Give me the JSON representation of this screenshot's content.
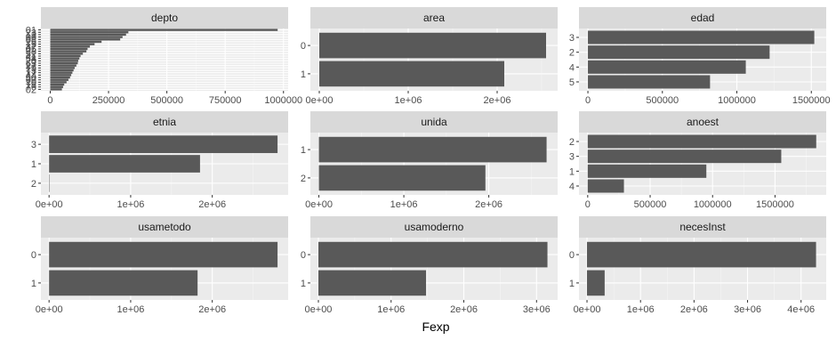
{
  "colors": {
    "panel_bg": "#ebebeb",
    "strip_bg": "#d9d9d9",
    "grid_major": "#ffffff",
    "bar": "#595959",
    "text": "#4d4d4d"
  },
  "chart_data": {
    "type": "bar",
    "orientation": "horizontal",
    "xlabel": "Fexp",
    "ylabel": "",
    "grid": true,
    "panels": [
      {
        "name": "depto",
        "categories": [
          "01",
          "23",
          "13",
          "06",
          "08",
          "25",
          "15",
          "47",
          "05",
          "68",
          "52",
          "41",
          "54",
          "20",
          "63",
          "27",
          "19",
          "73",
          "17",
          "44",
          "50",
          "66",
          "70",
          "18",
          "76",
          "02"
        ],
        "values": [
          975000,
          335000,
          325000,
          310000,
          300000,
          220000,
          190000,
          170000,
          160000,
          155000,
          140000,
          130000,
          125000,
          120000,
          118000,
          112000,
          105000,
          100000,
          95000,
          90000,
          85000,
          78000,
          70000,
          60000,
          55000,
          50000
        ],
        "xlim": [
          -40000,
          1020000
        ],
        "ticks": [
          0,
          250000,
          500000,
          750000,
          1000000
        ],
        "tick_labels": [
          "0",
          "250000",
          "500000",
          "750000",
          "1000000"
        ]
      },
      {
        "name": "area",
        "categories": [
          "0",
          "1"
        ],
        "values": [
          2550000,
          2080000
        ],
        "xlim": [
          -100000,
          2680000
        ],
        "ticks": [
          0,
          1000000,
          2000000
        ],
        "tick_labels": [
          "0e+00",
          "1e+06",
          "2e+06"
        ]
      },
      {
        "name": "edad",
        "categories": [
          "3",
          "2",
          "4",
          "5"
        ],
        "values": [
          1520000,
          1220000,
          1060000,
          820000
        ],
        "xlim": [
          -60000,
          1600000
        ],
        "ticks": [
          0,
          500000,
          1000000,
          1500000
        ],
        "tick_labels": [
          "0",
          "500000",
          "1000000",
          "1500000"
        ]
      },
      {
        "name": "etnia",
        "categories": [
          "3",
          "1",
          "2"
        ],
        "values": [
          2800000,
          1850000,
          5000
        ],
        "xlim": [
          -100000,
          2930000
        ],
        "ticks": [
          0,
          1000000,
          2000000
        ],
        "tick_labels": [
          "0e+00",
          "1e+06",
          "2e+06"
        ]
      },
      {
        "name": "unida",
        "categories": [
          "1",
          "2"
        ],
        "values": [
          2680000,
          1960000
        ],
        "xlim": [
          -100000,
          2810000
        ],
        "ticks": [
          0,
          1000000,
          2000000
        ],
        "tick_labels": [
          "0e+00",
          "1e+06",
          "2e+06"
        ]
      },
      {
        "name": "anoest",
        "categories": [
          "2",
          "3",
          "1",
          "4"
        ],
        "values": [
          1830000,
          1550000,
          950000,
          290000
        ],
        "xlim": [
          -70000,
          1910000
        ],
        "ticks": [
          0,
          500000,
          1000000,
          1500000
        ],
        "tick_labels": [
          "0",
          "500000",
          "1000000",
          "1500000"
        ]
      },
      {
        "name": "usametodo",
        "categories": [
          "0",
          "1"
        ],
        "values": [
          2800000,
          1820000
        ],
        "xlim": [
          -100000,
          2930000
        ],
        "ticks": [
          0,
          1000000,
          2000000
        ],
        "tick_labels": [
          "0e+00",
          "1e+06",
          "2e+06"
        ]
      },
      {
        "name": "usamoderno",
        "categories": [
          "0",
          "1"
        ],
        "values": [
          3150000,
          1480000
        ],
        "xlim": [
          -110000,
          3290000
        ],
        "ticks": [
          0,
          1000000,
          2000000,
          3000000
        ],
        "tick_labels": [
          "0e+00",
          "1e+06",
          "2e+06",
          "3e+06"
        ]
      },
      {
        "name": "necesInst",
        "categories": [
          "0",
          "1"
        ],
        "values": [
          4280000,
          330000
        ],
        "xlim": [
          -150000,
          4470000
        ],
        "ticks": [
          0,
          1000000,
          2000000,
          3000000,
          4000000
        ],
        "tick_labels": [
          "0e+00",
          "1e+06",
          "2e+06",
          "3e+06",
          "4e+06"
        ]
      }
    ]
  }
}
